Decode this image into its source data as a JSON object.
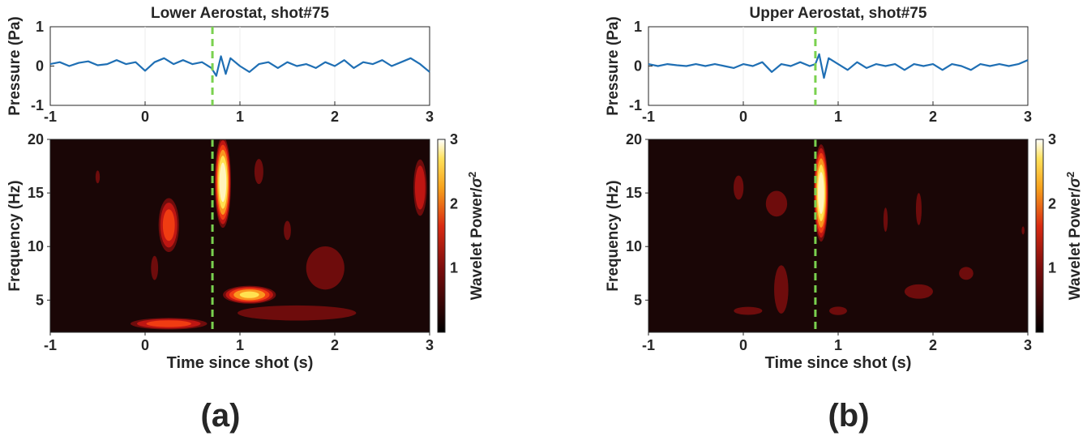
{
  "chart_data": [
    {
      "type": "line",
      "title": "Lower Aerostat, shot#75",
      "xlabel": "",
      "ylabel": "Pressure (Pa)",
      "xlim": [
        -1,
        3
      ],
      "ylim": [
        -1,
        1
      ],
      "xticks": [
        "-1",
        "0",
        "1",
        "2",
        "3"
      ],
      "yticks": [
        "1",
        "0",
        "-1"
      ],
      "grid": false,
      "series_color": "#1f6fb4",
      "marker_color": "#7ad14f",
      "shot_marker_x": 0.71,
      "x": [
        -1.0,
        -0.9,
        -0.8,
        -0.7,
        -0.6,
        -0.5,
        -0.4,
        -0.3,
        -0.2,
        -0.1,
        0.0,
        0.1,
        0.2,
        0.3,
        0.4,
        0.5,
        0.6,
        0.7,
        0.75,
        0.8,
        0.85,
        0.9,
        1.0,
        1.1,
        1.2,
        1.3,
        1.4,
        1.5,
        1.6,
        1.7,
        1.8,
        1.9,
        2.0,
        2.1,
        2.2,
        2.3,
        2.4,
        2.5,
        2.6,
        2.7,
        2.8,
        2.9,
        3.0
      ],
      "y": [
        0.05,
        0.1,
        0.0,
        0.08,
        0.12,
        0.02,
        0.05,
        0.15,
        0.05,
        0.1,
        -0.12,
        0.1,
        0.2,
        0.05,
        0.15,
        0.05,
        0.1,
        -0.05,
        -0.25,
        0.25,
        -0.2,
        0.2,
        0.0,
        -0.15,
        0.05,
        0.1,
        -0.05,
        0.1,
        0.0,
        0.05,
        -0.05,
        0.1,
        0.0,
        0.15,
        -0.05,
        0.1,
        0.05,
        0.15,
        0.0,
        0.1,
        0.2,
        0.05,
        -0.15
      ]
    },
    {
      "type": "line",
      "title": "Upper Aerostat, shot#75",
      "xlabel": "",
      "ylabel": "Pressure (Pa)",
      "xlim": [
        -1,
        3
      ],
      "ylim": [
        -1,
        1
      ],
      "xticks": [
        "-1",
        "0",
        "1",
        "2",
        "3"
      ],
      "yticks": [
        "1",
        "0",
        "-1"
      ],
      "grid": false,
      "series_color": "#1f6fb4",
      "marker_color": "#7ad14f",
      "shot_marker_x": 0.76,
      "x": [
        -1.0,
        -0.9,
        -0.8,
        -0.7,
        -0.6,
        -0.5,
        -0.4,
        -0.3,
        -0.2,
        -0.1,
        0.0,
        0.1,
        0.2,
        0.3,
        0.4,
        0.5,
        0.6,
        0.7,
        0.76,
        0.8,
        0.85,
        0.9,
        1.0,
        1.1,
        1.2,
        1.3,
        1.4,
        1.5,
        1.6,
        1.7,
        1.8,
        1.9,
        2.0,
        2.1,
        2.2,
        2.3,
        2.4,
        2.5,
        2.6,
        2.7,
        2.8,
        2.9,
        3.0
      ],
      "y": [
        0.05,
        0.0,
        0.05,
        0.02,
        0.0,
        0.05,
        0.0,
        0.05,
        0.0,
        -0.05,
        0.05,
        0.0,
        0.1,
        -0.15,
        0.05,
        0.0,
        0.1,
        0.0,
        0.05,
        0.3,
        -0.3,
        0.2,
        0.05,
        -0.1,
        0.1,
        -0.05,
        0.05,
        0.0,
        0.05,
        -0.1,
        0.05,
        0.0,
        0.05,
        -0.1,
        0.05,
        0.0,
        -0.1,
        0.05,
        0.0,
        0.05,
        0.0,
        0.05,
        0.15
      ]
    },
    {
      "type": "heatmap",
      "title": "",
      "xlabel": "Time since shot (s)",
      "ylabel": "Frequency (Hz)",
      "xlim": [
        -1,
        3
      ],
      "ylim": [
        2,
        20
      ],
      "xticks": [
        "-1",
        "0",
        "1",
        "2",
        "3"
      ],
      "yticks": [
        "20",
        "15",
        "10",
        "5"
      ],
      "colorbar_label": "Wavelet Power/",
      "colorbar_label_symbol": "σ",
      "colorbar_label_exponent": "2",
      "colorbar_ticks": [
        "3",
        "2",
        "1"
      ],
      "colorbar_range": [
        0,
        3
      ],
      "grid": false,
      "shot_marker_x": 0.71,
      "blobs": [
        {
          "x": 0.82,
          "y": 16.0,
          "rx": 0.09,
          "ry": 4.5,
          "peak": 3.0
        },
        {
          "x": 1.1,
          "y": 5.5,
          "rx": 0.3,
          "ry": 0.9,
          "peak": 2.3
        },
        {
          "x": 0.25,
          "y": 2.8,
          "rx": 0.45,
          "ry": 0.6,
          "peak": 1.5
        },
        {
          "x": 0.25,
          "y": 12.0,
          "rx": 0.12,
          "ry": 2.8,
          "peak": 1.5
        },
        {
          "x": 1.6,
          "y": 3.8,
          "rx": 0.8,
          "ry": 0.9,
          "peak": 0.6
        },
        {
          "x": 1.9,
          "y": 8.0,
          "rx": 0.25,
          "ry": 2.5,
          "peak": 0.7
        },
        {
          "x": 2.9,
          "y": 15.5,
          "rx": 0.08,
          "ry": 3.0,
          "peak": 1.2
        },
        {
          "x": 1.2,
          "y": 17.0,
          "rx": 0.06,
          "ry": 1.5,
          "peak": 0.6
        },
        {
          "x": 1.5,
          "y": 11.5,
          "rx": 0.05,
          "ry": 1.2,
          "peak": 0.5
        },
        {
          "x": -0.5,
          "y": 16.5,
          "rx": 0.03,
          "ry": 0.8,
          "peak": 0.5
        },
        {
          "x": 0.1,
          "y": 8.0,
          "rx": 0.05,
          "ry": 1.5,
          "peak": 0.5
        }
      ]
    },
    {
      "type": "heatmap",
      "title": "",
      "xlabel": "Time since shot (s)",
      "ylabel": "Frequency (Hz)",
      "xlim": [
        -1,
        3
      ],
      "ylim": [
        2,
        20
      ],
      "xticks": [
        "-1",
        "0",
        "1",
        "2",
        "3"
      ],
      "yticks": [
        "20",
        "15",
        "10",
        "5"
      ],
      "colorbar_label": "Wavelet Power/",
      "colorbar_label_symbol": "σ",
      "colorbar_label_exponent": "2",
      "colorbar_ticks": [
        "3",
        "2",
        "1"
      ],
      "colorbar_range": [
        0,
        3
      ],
      "grid": false,
      "shot_marker_x": 0.76,
      "blobs": [
        {
          "x": 0.82,
          "y": 15.0,
          "rx": 0.08,
          "ry": 4.8,
          "peak": 3.0
        },
        {
          "x": -0.05,
          "y": 15.5,
          "rx": 0.07,
          "ry": 1.5,
          "peak": 0.5
        },
        {
          "x": 0.35,
          "y": 14.0,
          "rx": 0.15,
          "ry": 1.6,
          "peak": 0.5
        },
        {
          "x": 0.4,
          "y": 6.0,
          "rx": 0.1,
          "ry": 3.0,
          "peak": 0.5
        },
        {
          "x": 0.05,
          "y": 4.0,
          "rx": 0.2,
          "ry": 0.5,
          "peak": 0.5
        },
        {
          "x": 1.0,
          "y": 4.0,
          "rx": 0.12,
          "ry": 0.5,
          "peak": 0.6
        },
        {
          "x": 1.5,
          "y": 12.5,
          "rx": 0.03,
          "ry": 1.5,
          "peak": 0.5
        },
        {
          "x": 1.85,
          "y": 13.5,
          "rx": 0.04,
          "ry": 2.0,
          "peak": 0.5
        },
        {
          "x": 1.85,
          "y": 5.8,
          "rx": 0.2,
          "ry": 0.9,
          "peak": 0.5
        },
        {
          "x": 2.35,
          "y": 7.5,
          "rx": 0.1,
          "ry": 0.8,
          "peak": 0.5
        },
        {
          "x": 2.95,
          "y": 11.5,
          "rx": 0.02,
          "ry": 0.5,
          "peak": 0.5
        }
      ]
    }
  ],
  "panel_labels": [
    "(a)",
    "(b)"
  ]
}
